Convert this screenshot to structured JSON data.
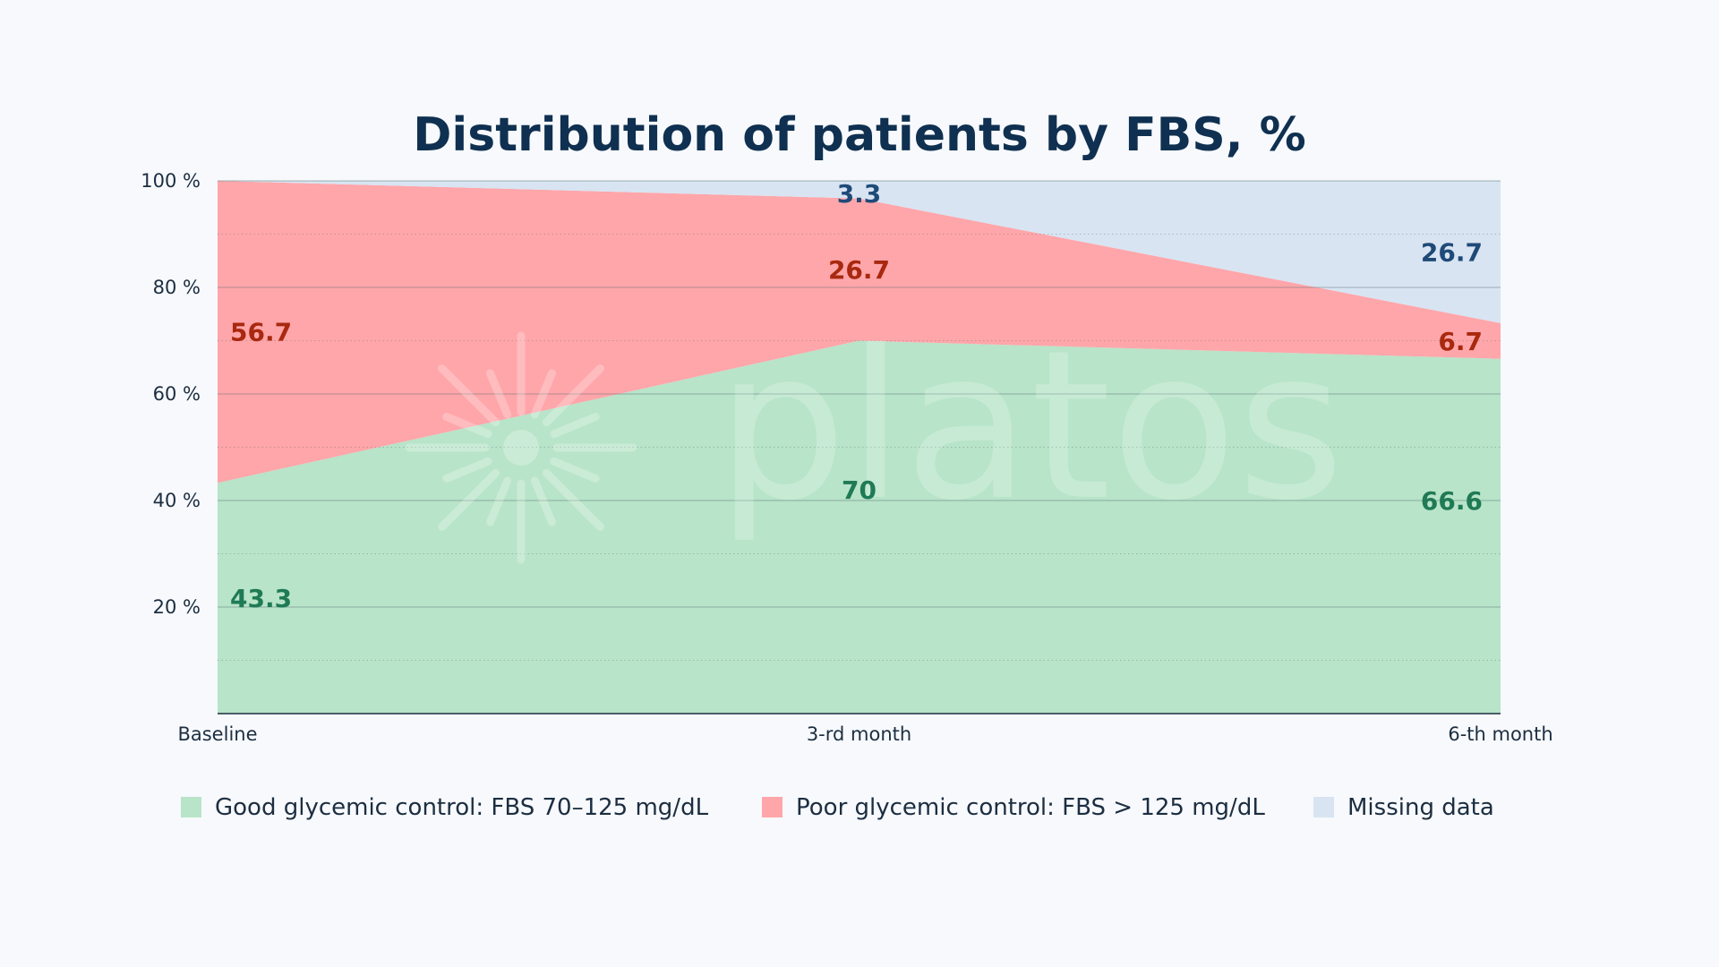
{
  "chart_data": {
    "type": "area",
    "stacked": true,
    "normalized_percent": true,
    "title": "Distribution of patients by FBS, %",
    "categories": [
      "Baseline",
      "3-rd month",
      "6-th month"
    ],
    "ylim": [
      0,
      100
    ],
    "y_ticks": [
      20,
      40,
      60,
      80,
      100
    ],
    "y_tick_labels": [
      "20 %",
      "40 %",
      "60 %",
      "80 %",
      "100 %"
    ],
    "grid": true,
    "legend_position": "bottom",
    "series": [
      {
        "name": "Good glycemic control: FBS 70–125 mg/dL",
        "values": [
          43.3,
          70,
          66.6
        ],
        "labels": [
          "43.3",
          "70",
          "66.6"
        ],
        "color": "#B8E4C9",
        "label_color": "#1F7A55"
      },
      {
        "name": "Poor glycemic control: FBS > 125 mg/dL",
        "values": [
          56.7,
          26.7,
          6.7
        ],
        "labels": [
          "56.7",
          "26.7",
          "6.7"
        ],
        "color": "#FFA6AA",
        "label_color": "#A8290F"
      },
      {
        "name": "Missing data",
        "values": [
          0,
          3.3,
          26.7
        ],
        "labels": [
          "",
          "3.3",
          "26.7"
        ],
        "color": "#D8E4F2",
        "label_color": "#1F4A78"
      }
    ],
    "watermark": "platos"
  }
}
